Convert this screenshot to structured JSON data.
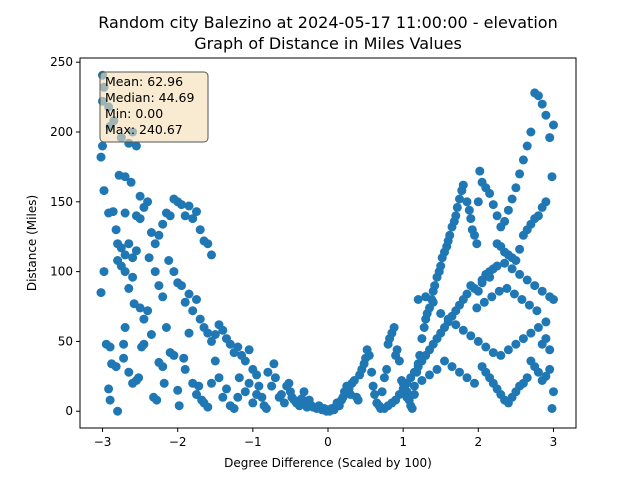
{
  "chart_data": {
    "type": "scatter",
    "title": "Random city Balezino at 2024-05-17 11:00:00  - elevation",
    "subtitle": "Graph of Distance in Miles Values",
    "xlabel": "Degree Difference (Scaled by 100)",
    "ylabel": "Distance (Miles)",
    "xlim": [
      -3.3,
      3.3
    ],
    "ylim": [
      -12,
      253
    ],
    "xticks": [
      -3,
      -2,
      -1,
      0,
      1,
      2,
      3
    ],
    "yticks": [
      0,
      50,
      100,
      150,
      200,
      250
    ],
    "point_color": "#1f77b4",
    "grid": false,
    "stats_box": {
      "lines": [
        "Mean: 62.96",
        "Median: 44.69",
        "Min: 0.00",
        "Max: 240.67"
      ],
      "background": "#f5deb3",
      "placement": "top-left"
    },
    "points": [
      [
        -3.0,
        240.7
      ],
      [
        -3.0,
        222
      ],
      [
        -2.98,
        232
      ],
      [
        -2.92,
        218
      ],
      [
        -2.85,
        208
      ],
      [
        -3.0,
        190
      ],
      [
        -3.02,
        182
      ],
      [
        -2.9,
        204
      ],
      [
        -2.75,
        196
      ],
      [
        -2.65,
        192
      ],
      [
        -2.6,
        200
      ],
      [
        -2.55,
        190
      ],
      [
        -2.98,
        158
      ],
      [
        -2.92,
        142
      ],
      [
        -2.86,
        143
      ],
      [
        -2.78,
        169
      ],
      [
        -2.7,
        168
      ],
      [
        -2.62,
        164
      ],
      [
        -2.7,
        142
      ],
      [
        -2.55,
        140
      ],
      [
        -2.5,
        138
      ],
      [
        -2.45,
        146
      ],
      [
        -2.5,
        154
      ],
      [
        -2.4,
        150
      ],
      [
        -2.35,
        128
      ],
      [
        -2.3,
        120
      ],
      [
        -2.25,
        126
      ],
      [
        -2.2,
        134
      ],
      [
        -2.15,
        142
      ],
      [
        -2.1,
        140
      ],
      [
        -2.05,
        152
      ],
      [
        -2.0,
        150
      ],
      [
        -1.95,
        148
      ],
      [
        -1.9,
        140
      ],
      [
        -1.85,
        147
      ],
      [
        -1.8,
        138
      ],
      [
        -1.75,
        143
      ],
      [
        -1.7,
        130
      ],
      [
        -1.65,
        122
      ],
      [
        -1.6,
        120
      ],
      [
        -1.55,
        112
      ],
      [
        -2.82,
        130
      ],
      [
        -2.8,
        120
      ],
      [
        -2.75,
        117
      ],
      [
        -2.7,
        112
      ],
      [
        -2.65,
        120
      ],
      [
        -2.6,
        110
      ],
      [
        -2.55,
        115
      ],
      [
        -2.8,
        108
      ],
      [
        -2.75,
        104
      ],
      [
        -2.7,
        100
      ],
      [
        -2.65,
        88
      ],
      [
        -2.6,
        96
      ],
      [
        -2.58,
        77
      ],
      [
        -2.5,
        74
      ],
      [
        -2.45,
        66
      ],
      [
        -2.38,
        110
      ],
      [
        -2.3,
        100
      ],
      [
        -2.25,
        90
      ],
      [
        -2.2,
        82
      ],
      [
        -2.12,
        108
      ],
      [
        -2.05,
        100
      ],
      [
        -2.0,
        92
      ],
      [
        -1.95,
        90
      ],
      [
        -1.9,
        78
      ],
      [
        -1.85,
        84
      ],
      [
        -1.8,
        72
      ],
      [
        -1.75,
        80
      ],
      [
        -1.7,
        66
      ],
      [
        -1.65,
        60
      ],
      [
        -1.6,
        56
      ],
      [
        -1.55,
        50
      ],
      [
        -1.5,
        55
      ],
      [
        -1.45,
        62
      ],
      [
        -1.4,
        58
      ],
      [
        -1.35,
        52
      ],
      [
        -1.3,
        48
      ],
      [
        -1.25,
        42
      ],
      [
        -1.2,
        46
      ],
      [
        -1.15,
        40
      ],
      [
        -1.1,
        36
      ],
      [
        -1.05,
        44
      ],
      [
        -1.0,
        30
      ],
      [
        -0.95,
        26
      ],
      [
        -2.98,
        100
      ],
      [
        -3.02,
        85
      ],
      [
        -2.95,
        48
      ],
      [
        -2.9,
        46
      ],
      [
        -2.88,
        34
      ],
      [
        -2.82,
        32
      ],
      [
        -2.92,
        16
      ],
      [
        -2.9,
        8
      ],
      [
        -2.8,
        0
      ],
      [
        -2.72,
        48
      ],
      [
        -2.72,
        38
      ],
      [
        -2.7,
        60
      ],
      [
        -2.65,
        28
      ],
      [
        -2.6,
        20
      ],
      [
        -2.55,
        22
      ],
      [
        -2.52,
        24
      ],
      [
        -2.48,
        46
      ],
      [
        -2.45,
        48
      ],
      [
        -2.4,
        72
      ],
      [
        -2.35,
        55
      ],
      [
        -2.32,
        10
      ],
      [
        -2.28,
        8
      ],
      [
        -2.25,
        35
      ],
      [
        -2.2,
        32
      ],
      [
        -2.18,
        20
      ],
      [
        -2.15,
        60
      ],
      [
        -2.1,
        42
      ],
      [
        -2.05,
        40
      ],
      [
        -2.0,
        15
      ],
      [
        -1.98,
        4
      ],
      [
        -1.92,
        38
      ],
      [
        -1.9,
        30
      ],
      [
        -1.85,
        56
      ],
      [
        -1.8,
        20
      ],
      [
        -1.75,
        12
      ],
      [
        -1.72,
        18
      ],
      [
        -1.68,
        8
      ],
      [
        -1.65,
        6
      ],
      [
        -1.6,
        3
      ],
      [
        -1.55,
        20
      ],
      [
        -1.5,
        36
      ],
      [
        -1.45,
        24
      ],
      [
        -1.4,
        10
      ],
      [
        -1.35,
        16
      ],
      [
        -1.3,
        4
      ],
      [
        -1.25,
        2
      ],
      [
        -1.2,
        10
      ],
      [
        -1.18,
        24
      ],
      [
        -1.1,
        14
      ],
      [
        -1.05,
        20
      ],
      [
        -1.0,
        6
      ],
      [
        -0.95,
        12
      ],
      [
        -0.92,
        18
      ],
      [
        -0.88,
        10
      ],
      [
        -0.85,
        4
      ],
      [
        -0.82,
        2
      ],
      [
        -0.8,
        28
      ],
      [
        -0.75,
        18
      ],
      [
        -0.72,
        34
      ],
      [
        -0.7,
        24
      ],
      [
        -0.65,
        10
      ],
      [
        -0.62,
        12
      ],
      [
        -0.58,
        6
      ],
      [
        -0.55,
        18
      ],
      [
        -0.52,
        20
      ],
      [
        -0.5,
        14
      ],
      [
        -0.48,
        10
      ],
      [
        -0.45,
        8
      ],
      [
        -0.42,
        6
      ],
      [
        -0.38,
        4
      ],
      [
        -0.35,
        9
      ],
      [
        -0.32,
        14
      ],
      [
        -0.3,
        6
      ],
      [
        -0.28,
        3
      ],
      [
        -0.25,
        8
      ],
      [
        -0.22,
        4
      ],
      [
        -0.2,
        3
      ],
      [
        -0.15,
        2
      ],
      [
        -0.12,
        4
      ],
      [
        -0.08,
        1
      ],
      [
        -0.05,
        2
      ],
      [
        -0.02,
        0
      ],
      [
        0.0,
        1
      ],
      [
        0.02,
        0
      ],
      [
        0.05,
        2
      ],
      [
        0.08,
        1
      ],
      [
        0.1,
        3
      ],
      [
        0.12,
        6
      ],
      [
        0.15,
        4
      ],
      [
        0.18,
        8
      ],
      [
        0.2,
        10
      ],
      [
        0.22,
        14
      ],
      [
        0.25,
        18
      ],
      [
        0.28,
        16
      ],
      [
        0.3,
        12
      ],
      [
        0.32,
        20
      ],
      [
        0.35,
        22
      ],
      [
        0.38,
        10
      ],
      [
        0.4,
        8
      ],
      [
        0.42,
        26
      ],
      [
        0.45,
        30
      ],
      [
        0.48,
        34
      ],
      [
        0.5,
        38
      ],
      [
        0.52,
        44
      ],
      [
        0.55,
        40
      ],
      [
        0.58,
        28
      ],
      [
        0.6,
        18
      ],
      [
        0.62,
        12
      ],
      [
        0.65,
        6
      ],
      [
        0.68,
        4
      ],
      [
        0.7,
        2
      ],
      [
        0.72,
        14
      ],
      [
        0.75,
        24
      ],
      [
        0.78,
        30
      ],
      [
        0.8,
        48
      ],
      [
        0.82,
        52
      ],
      [
        0.85,
        56
      ],
      [
        0.88,
        60
      ],
      [
        0.9,
        40
      ],
      [
        0.92,
        44
      ],
      [
        0.95,
        36
      ],
      [
        0.98,
        22
      ],
      [
        1.0,
        20
      ],
      [
        1.02,
        16
      ],
      [
        1.05,
        10
      ],
      [
        1.08,
        8
      ],
      [
        1.1,
        4
      ],
      [
        1.12,
        2
      ],
      [
        1.15,
        12
      ],
      [
        1.18,
        28
      ],
      [
        1.2,
        34
      ],
      [
        1.22,
        40
      ],
      [
        1.25,
        52
      ],
      [
        1.28,
        60
      ],
      [
        1.3,
        66
      ],
      [
        1.32,
        70
      ],
      [
        1.35,
        74
      ],
      [
        1.38,
        80
      ],
      [
        1.4,
        86
      ],
      [
        1.42,
        90
      ],
      [
        1.45,
        96
      ],
      [
        1.48,
        100
      ],
      [
        1.5,
        104
      ],
      [
        1.52,
        110
      ],
      [
        1.55,
        114
      ],
      [
        1.58,
        118
      ],
      [
        1.6,
        122
      ],
      [
        1.62,
        126
      ],
      [
        1.65,
        132
      ],
      [
        1.68,
        136
      ],
      [
        1.7,
        140
      ],
      [
        1.72,
        146
      ],
      [
        1.75,
        152
      ],
      [
        1.78,
        158
      ],
      [
        1.8,
        162
      ],
      [
        1.85,
        150
      ],
      [
        1.88,
        144
      ],
      [
        1.9,
        138
      ],
      [
        1.92,
        130
      ],
      [
        1.95,
        126
      ],
      [
        1.98,
        120
      ],
      [
        2.0,
        150
      ],
      [
        2.02,
        172
      ],
      [
        2.05,
        164
      ],
      [
        2.1,
        160
      ],
      [
        2.15,
        156
      ],
      [
        2.2,
        148
      ],
      [
        2.25,
        140
      ],
      [
        2.3,
        132
      ],
      [
        2.35,
        136
      ],
      [
        2.4,
        144
      ],
      [
        2.45,
        152
      ],
      [
        2.5,
        160
      ],
      [
        2.55,
        170
      ],
      [
        2.6,
        180
      ],
      [
        2.65,
        190
      ],
      [
        2.7,
        200
      ],
      [
        2.75,
        228
      ],
      [
        2.8,
        226
      ],
      [
        2.85,
        220
      ],
      [
        2.9,
        212
      ],
      [
        2.95,
        196
      ],
      [
        3.0,
        205
      ],
      [
        2.98,
        168
      ],
      [
        2.9,
        150
      ],
      [
        2.85,
        146
      ],
      [
        2.8,
        140
      ],
      [
        2.75,
        138
      ],
      [
        2.7,
        134
      ],
      [
        2.65,
        130
      ],
      [
        2.6,
        126
      ],
      [
        2.55,
        116
      ],
      [
        2.5,
        108
      ],
      [
        2.45,
        110
      ],
      [
        2.4,
        112
      ],
      [
        2.35,
        114
      ],
      [
        2.3,
        118
      ],
      [
        2.25,
        120
      ],
      [
        2.2,
        102
      ],
      [
        2.15,
        100
      ],
      [
        2.1,
        98
      ],
      [
        2.05,
        94
      ],
      [
        2.0,
        86
      ],
      [
        1.95,
        88
      ],
      [
        1.9,
        90
      ],
      [
        1.85,
        84
      ],
      [
        1.8,
        80
      ],
      [
        1.75,
        76
      ],
      [
        1.7,
        72
      ],
      [
        1.65,
        68
      ],
      [
        1.6,
        64
      ],
      [
        1.55,
        60
      ],
      [
        1.5,
        56
      ],
      [
        1.45,
        52
      ],
      [
        1.4,
        48
      ],
      [
        1.35,
        44
      ],
      [
        1.3,
        40
      ],
      [
        1.25,
        36
      ],
      [
        1.2,
        32
      ],
      [
        1.15,
        28
      ],
      [
        1.1,
        24
      ],
      [
        1.05,
        20
      ],
      [
        1.0,
        16
      ],
      [
        0.95,
        12
      ],
      [
        0.9,
        8
      ],
      [
        0.85,
        6
      ],
      [
        0.8,
        4
      ],
      [
        0.75,
        2
      ],
      [
        1.2,
        80
      ],
      [
        1.3,
        82
      ],
      [
        1.4,
        78
      ],
      [
        1.5,
        70
      ],
      [
        1.6,
        66
      ],
      [
        1.7,
        62
      ],
      [
        1.8,
        58
      ],
      [
        1.9,
        54
      ],
      [
        2.0,
        50
      ],
      [
        2.1,
        46
      ],
      [
        2.2,
        42
      ],
      [
        2.3,
        40
      ],
      [
        2.4,
        44
      ],
      [
        2.5,
        48
      ],
      [
        2.6,
        52
      ],
      [
        2.7,
        56
      ],
      [
        2.8,
        60
      ],
      [
        2.9,
        64
      ],
      [
        3.0,
        80
      ],
      [
        2.95,
        82
      ],
      [
        2.85,
        86
      ],
      [
        2.75,
        90
      ],
      [
        2.65,
        94
      ],
      [
        2.55,
        98
      ],
      [
        2.45,
        102
      ],
      [
        2.35,
        106
      ],
      [
        2.25,
        104
      ],
      [
        2.15,
        96
      ],
      [
        2.05,
        92
      ],
      [
        1.95,
        20
      ],
      [
        1.85,
        24
      ],
      [
        1.75,
        28
      ],
      [
        1.65,
        32
      ],
      [
        1.55,
        36
      ],
      [
        1.45,
        30
      ],
      [
        1.35,
        26
      ],
      [
        1.25,
        22
      ],
      [
        1.15,
        18
      ],
      [
        1.05,
        14
      ],
      [
        2.95,
        30
      ],
      [
        2.9,
        25
      ],
      [
        2.85,
        22
      ],
      [
        2.8,
        28
      ],
      [
        2.75,
        32
      ],
      [
        2.7,
        36
      ],
      [
        2.65,
        24
      ],
      [
        2.6,
        20
      ],
      [
        2.55,
        18
      ],
      [
        2.5,
        14
      ],
      [
        2.45,
        10
      ],
      [
        2.4,
        6
      ],
      [
        2.35,
        8
      ],
      [
        2.3,
        12
      ],
      [
        2.25,
        16
      ],
      [
        2.2,
        20
      ],
      [
        2.15,
        24
      ],
      [
        2.1,
        28
      ],
      [
        2.05,
        32
      ],
      [
        2.98,
        2
      ],
      [
        3.0,
        14
      ],
      [
        2.85,
        48
      ],
      [
        2.9,
        52
      ],
      [
        2.95,
        44
      ],
      [
        2.78,
        72
      ],
      [
        2.68,
        76
      ],
      [
        2.58,
        80
      ],
      [
        2.48,
        84
      ],
      [
        2.38,
        88
      ],
      [
        2.28,
        86
      ],
      [
        2.18,
        82
      ],
      [
        2.08,
        78
      ],
      [
        1.98,
        74
      ]
    ]
  }
}
